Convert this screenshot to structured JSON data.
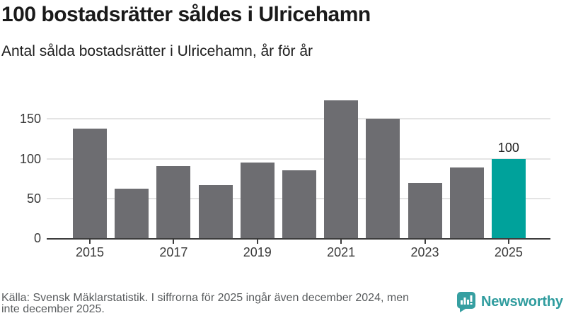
{
  "title": "100 bostadsrätter såldes i Ulricehamn",
  "subtitle": "Antal sålda bostadsrätter i Ulricehamn, år för år",
  "chart_data": {
    "type": "bar",
    "categories": [
      "2015",
      "2016",
      "2017",
      "2018",
      "2019",
      "2020",
      "2021",
      "2022",
      "2023",
      "2024",
      "2025"
    ],
    "values": [
      138,
      62,
      91,
      67,
      95,
      85,
      173,
      150,
      69,
      89,
      100
    ],
    "highlight_index": 10,
    "highlight_label": "100",
    "yticks": [
      0,
      50,
      100,
      150
    ],
    "xtick_labels": [
      "2015",
      "2017",
      "2019",
      "2021",
      "2023",
      "2025"
    ],
    "ylim": [
      0,
      176
    ],
    "grid": "horizontal",
    "legend": "none",
    "colors": {
      "bar": "#6d6d71",
      "highlight": "#00a29b",
      "axis": "#3d3d3d",
      "gridline": "#e4e4e4",
      "tick_text": "#3a3a3a"
    }
  },
  "footer": {
    "source_lines": [
      "Källa: Svensk Mäklarstatistik. I siffrorna för 2025 ingår även december 2024, men",
      "inte december 2025."
    ]
  },
  "branding": {
    "name": "Newsworthy",
    "logo_icon": "speech-bubble-bar-chart",
    "color": "#2f9c9e"
  }
}
